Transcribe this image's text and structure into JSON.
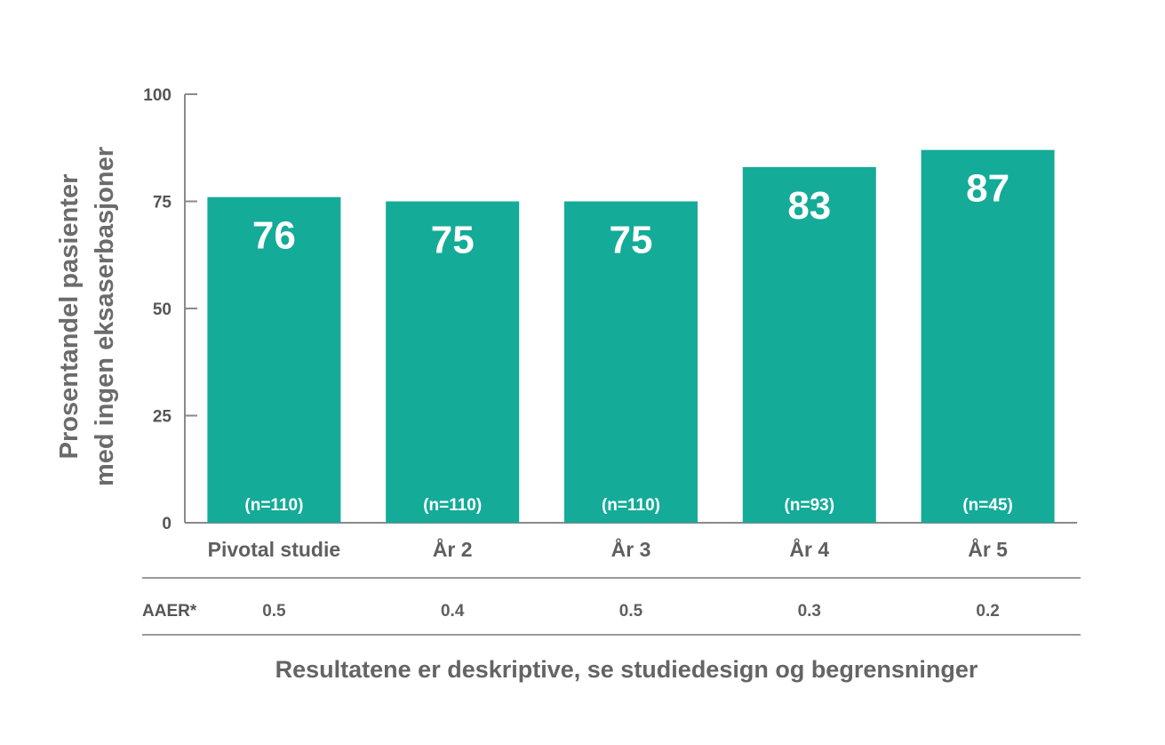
{
  "chart_data": {
    "type": "bar",
    "categories": [
      "Pivotal studie",
      "År 2",
      "År 3",
      "År 4",
      "År 5"
    ],
    "values": [
      76,
      75,
      75,
      83,
      87
    ],
    "value_labels": [
      "76",
      "75",
      "75",
      "83",
      "87"
    ],
    "n_labels": [
      "(n=110)",
      "(n=110)",
      "(n=110)",
      "(n=93)",
      "(n=45)"
    ],
    "ylabel_lines": [
      "Prosentandel pasienter",
      "med ingen eksaserbasjoner"
    ],
    "ylim": [
      0,
      100
    ],
    "yticks": [
      0,
      25,
      50,
      75,
      100
    ],
    "ytick_labels": [
      "0",
      "25",
      "50",
      "75",
      "100"
    ],
    "grid": false,
    "bar_color": "#14ab98",
    "table": {
      "row_label": "AAER*",
      "values": [
        "0.5",
        "0.4",
        "0.5",
        "0.3",
        "0.2"
      ]
    },
    "footnote": "Resultatene er deskriptive, se studiedesign og begrensninger"
  }
}
